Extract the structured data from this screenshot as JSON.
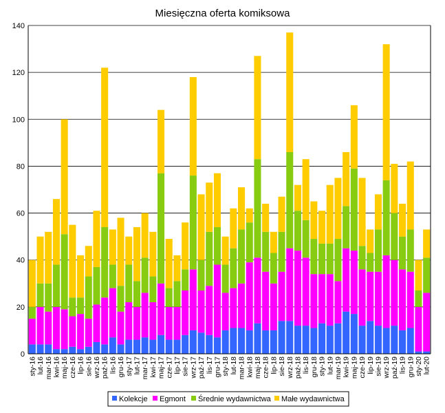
{
  "chart_data": {
    "type": "bar",
    "stacked": true,
    "title": "Miesięczna oferta komiksowa",
    "xlabel": "",
    "ylabel": "",
    "ylim": [
      0,
      140
    ],
    "yticks": [
      0,
      20,
      40,
      60,
      80,
      100,
      120,
      140
    ],
    "grid": "horizontal",
    "legend_position": "bottom",
    "categories": [
      "sty-16",
      "lut-16",
      "mar-16",
      "kwi-16",
      "maj-16",
      "cze-16",
      "lip-16",
      "sie-16",
      "wrz-16",
      "paź-16",
      "lis-16",
      "gru-16",
      "sty-17",
      "lut-17",
      "mar-17",
      "kwi-17",
      "maj-17",
      "cze-17",
      "lip-17",
      "sie-17",
      "wrz-17",
      "paź-17",
      "lis-17",
      "gru-17",
      "sty-18",
      "lut-18",
      "mar-18",
      "kwi-18",
      "maj-18",
      "cze-18",
      "lip-18",
      "sie-18",
      "wrz-18",
      "paź-18",
      "lis-18",
      "gru-18",
      "sty-19",
      "lut-19",
      "mar-19",
      "kwi-19",
      "maj-19",
      "cze-19",
      "lip-19",
      "sie-19",
      "wrz-19",
      "paź-19",
      "lis-19",
      "gru-19",
      "sty-20",
      "lut-20"
    ],
    "series": [
      {
        "name": "Kolekcje",
        "color": "#3366ff",
        "values": [
          4,
          4,
          4,
          2,
          2,
          3,
          2,
          3,
          5,
          4,
          7,
          4,
          6,
          6,
          7,
          6,
          8,
          6,
          6,
          8,
          10,
          9,
          8,
          7,
          10,
          11,
          11,
          10,
          13,
          10,
          10,
          14,
          14,
          12,
          12,
          11,
          13,
          12,
          13,
          18,
          17,
          12,
          14,
          12,
          11,
          12,
          10,
          11,
          1,
          1
        ]
      },
      {
        "name": "Egmont",
        "color": "#ff00ff",
        "values": [
          11,
          16,
          14,
          18,
          17,
          13,
          15,
          12,
          16,
          20,
          21,
          14,
          16,
          14,
          19,
          16,
          22,
          14,
          14,
          19,
          26,
          18,
          21,
          31,
          16,
          17,
          19,
          29,
          28,
          25,
          20,
          21,
          31,
          32,
          29,
          23,
          21,
          22,
          18,
          27,
          27,
          24,
          21,
          23,
          31,
          28,
          26,
          24,
          19,
          25
        ]
      },
      {
        "name": "Średnie wydawnictwa",
        "color": "#88cc11",
        "values": [
          5,
          10,
          12,
          18,
          32,
          8,
          7,
          18,
          16,
          30,
          10,
          11,
          16,
          11,
          15,
          11,
          47,
          8,
          11,
          9,
          40,
          13,
          23,
          16,
          12,
          17,
          23,
          17,
          42,
          17,
          13,
          17,
          41,
          17,
          16,
          15,
          13,
          13,
          18,
          18,
          35,
          10,
          8,
          18,
          32,
          20,
          14,
          18,
          7,
          15
        ]
      },
      {
        "name": "Małe wydawnictwa",
        "color": "#ffcc00",
        "values": [
          20,
          20,
          22,
          28,
          49,
          31,
          18,
          13,
          24,
          68,
          15,
          29,
          12,
          23,
          19,
          19,
          27,
          21,
          11,
          20,
          42,
          28,
          21,
          23,
          12,
          17,
          18,
          6,
          44,
          12,
          9,
          15,
          51,
          11,
          26,
          16,
          14,
          25,
          26,
          23,
          27,
          29,
          10,
          15,
          58,
          21,
          14,
          29,
          13,
          12
        ]
      }
    ]
  }
}
